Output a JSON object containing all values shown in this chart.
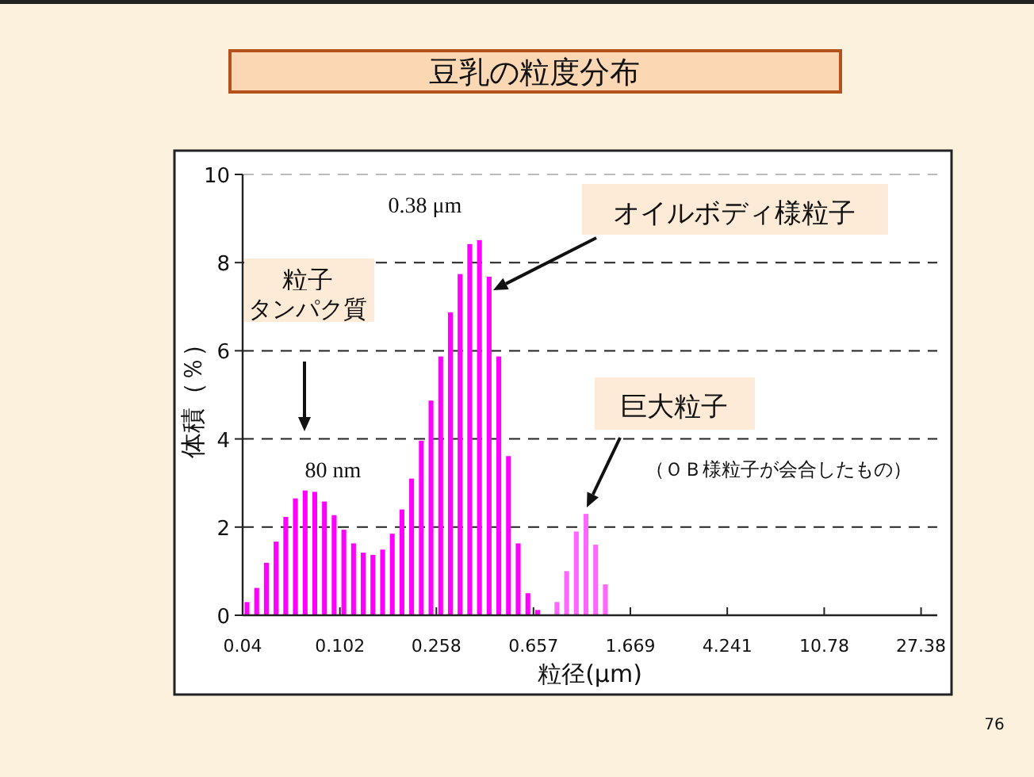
{
  "chart_data": {
    "type": "histogram",
    "title": "豆乳の粒度分布",
    "xlabel": "粒径(μm)",
    "ylabel": "体積（％）",
    "bins": [
      0.04,
      0.0439,
      0.0482,
      0.0529,
      0.0581,
      0.0637,
      0.07,
      0.0768,
      0.0843,
      0.0925,
      0.1016,
      0.1115,
      0.1224,
      0.1343,
      0.1475,
      0.1619,
      0.1777,
      0.195,
      0.2141,
      0.235,
      0.258,
      0.2832,
      0.3108,
      0.3412,
      0.3746,
      0.4112,
      0.4513,
      0.4954,
      0.5438,
      0.597,
      0.6553,
      0.7193,
      0.7896,
      0.8668,
      0.9515,
      1.0444,
      1.1465,
      1.2585,
      1.3815
    ],
    "values": [
      0.3,
      0.62,
      1.19,
      1.67,
      2.23,
      2.65,
      2.83,
      2.8,
      2.58,
      2.27,
      1.94,
      1.63,
      1.42,
      1.37,
      1.49,
      1.85,
      2.4,
      3.1,
      3.96,
      4.87,
      5.87,
      6.87,
      7.74,
      8.42,
      8.51,
      7.68,
      5.87,
      3.61,
      1.63,
      0.5,
      0.12,
      null,
      0.3,
      1.0,
      1.9,
      2.3,
      1.6,
      0.7
    ],
    "colors": [
      "#ff00ff",
      "#ff00ff",
      "#ff00ff",
      "#ff00ff",
      "#ff00ff",
      "#ff00ff",
      "#ff00ff",
      "#ff00ff",
      "#ff00ff",
      "#ff00ff",
      "#ff00ff",
      "#ff00ff",
      "#ff00ff",
      "#ff00ff",
      "#ff00ff",
      "#ff00ff",
      "#ff00ff",
      "#ff00ff",
      "#ff00ff",
      "#ff00ff",
      "#ff00ff",
      "#ff00ff",
      "#ff00ff",
      "#ff00ff",
      "#ff00ff",
      "#ff00ff",
      "#ff00ff",
      "#ff00ff",
      "#ff00ff",
      "#ff00ff",
      "#ff00ff",
      null,
      "#ff66ff",
      "#ff66ff",
      "#ff66ff",
      "#ff66ff",
      "#ff66ff",
      "#ff66ff"
    ],
    "log": "x",
    "xlim": [
      0.04,
      32
    ],
    "xticks": [
      0.04,
      0.102,
      0.258,
      0.657,
      1.669,
      4.241,
      10.78,
      27.38
    ],
    "ylim": [
      0,
      10
    ],
    "yticks": [
      0,
      2,
      4,
      6,
      8,
      10
    ],
    "grid": "y",
    "annotations": [
      "0.38 μm",
      "80 nm",
      "粒子",
      "タンパク質",
      "オイルボディ様粒子",
      "巨大粒子",
      "（ＯＢ様粒子が会合したもの）",
      "76"
    ]
  }
}
